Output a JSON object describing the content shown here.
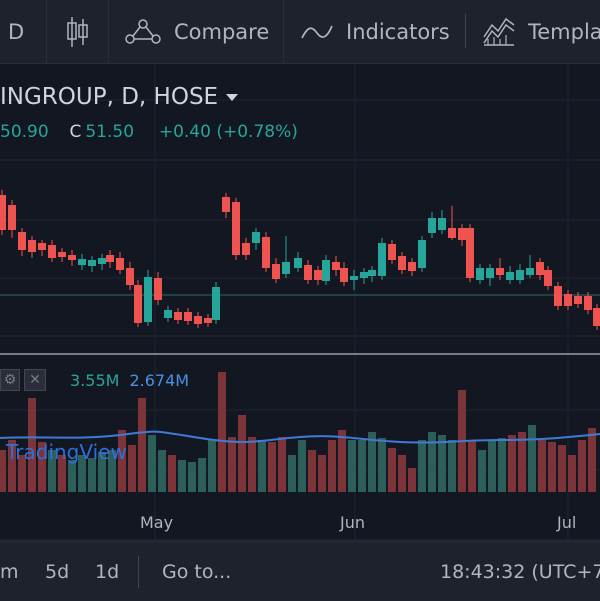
{
  "toolbar": {
    "interval": "D",
    "compare_label": "Compare",
    "indicators_label": "Indicators",
    "templates_label": "Templa"
  },
  "legend": {
    "symbol": "INGROUP, D, HOSE",
    "open_partial": "50.90",
    "close_label": "C",
    "close_value": "51.50",
    "change": "+0.40 (+0.78%)"
  },
  "volume_legend": {
    "value_a": "3.55M",
    "value_b": "2.674M"
  },
  "watermark": "TradingView",
  "time_axis": [
    "May",
    "Jun",
    "Jul"
  ],
  "bottom_bar": {
    "range_m": "m",
    "range_5d": "5d",
    "range_1d": "1d",
    "goto": "Go to...",
    "clock": "18:43:32 (UTC+7)"
  },
  "colors": {
    "up": "#26a69a",
    "down": "#ef5350",
    "background": "#131722"
  }
}
